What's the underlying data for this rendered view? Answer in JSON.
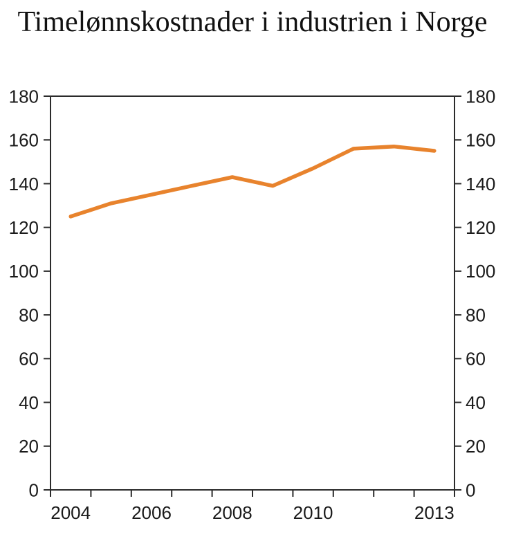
{
  "chart_data": {
    "type": "line",
    "title": "Timelønnskostnader i industrien i Norge",
    "x": [
      2004,
      2005,
      2006,
      2007,
      2008,
      2009,
      2010,
      2011,
      2012,
      2013
    ],
    "series": [
      {
        "name": "Timelønnskostnader i industrien i Norge",
        "values": [
          125,
          131,
          135,
          139,
          143,
          139,
          147,
          156,
          157,
          155
        ]
      }
    ],
    "xlabel": "",
    "ylabel": "",
    "ylim": [
      0,
      180
    ],
    "y_ticks": [
      0,
      20,
      40,
      60,
      80,
      100,
      120,
      140,
      160,
      180
    ],
    "x_tick_labels": [
      "2004",
      "2006",
      "2008",
      "2010",
      "2013"
    ],
    "y_axis_sides": "both",
    "grid": false,
    "legend": "none",
    "line_color": "#E8832D",
    "axis_color": "#2B2B2B",
    "text_color": "#1A1A1A",
    "background": "#FFFFFF"
  }
}
